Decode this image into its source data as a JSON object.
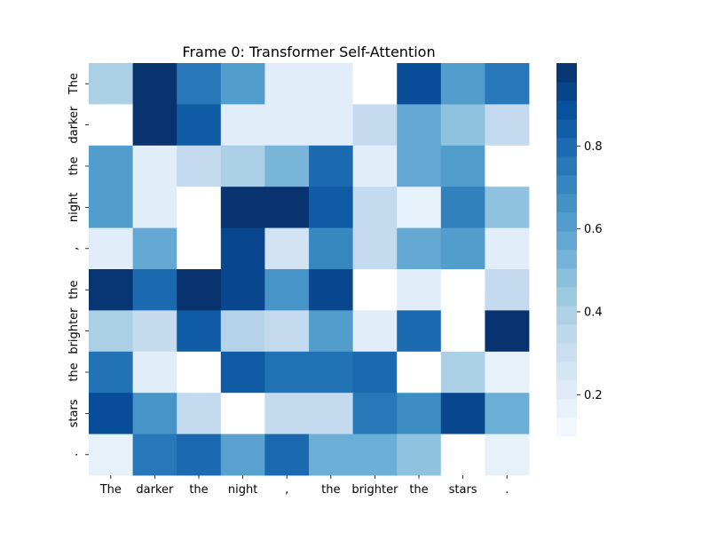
{
  "chart_data": {
    "type": "heatmap",
    "title": "Frame 0: Transformer Self-Attention",
    "x_tick_labels": [
      "The",
      "darker",
      "the",
      "night",
      ",",
      "the",
      "brighter",
      "the",
      "stars",
      "."
    ],
    "y_tick_labels": [
      "The",
      "darker",
      "the",
      "night",
      ",",
      "the",
      "brighter",
      "the",
      "stars",
      "."
    ],
    "values": [
      [
        0.4,
        0.99,
        0.75,
        0.62,
        0.2,
        0.2,
        0.05,
        0.9,
        0.62,
        0.75
      ],
      [
        0.05,
        0.99,
        0.85,
        0.2,
        0.2,
        0.2,
        0.33,
        0.57,
        0.47,
        0.33
      ],
      [
        0.62,
        0.2,
        0.33,
        0.4,
        0.52,
        0.8,
        0.2,
        0.57,
        0.62,
        0.05
      ],
      [
        0.62,
        0.2,
        0.05,
        0.99,
        0.99,
        0.85,
        0.33,
        0.17,
        0.72,
        0.47
      ],
      [
        0.2,
        0.57,
        0.05,
        0.92,
        0.27,
        0.7,
        0.33,
        0.57,
        0.62,
        0.2
      ],
      [
        0.98,
        0.8,
        0.99,
        0.92,
        0.65,
        0.92,
        0.05,
        0.2,
        0.05,
        0.33
      ],
      [
        0.4,
        0.33,
        0.85,
        0.37,
        0.33,
        0.62,
        0.2,
        0.8,
        0.05,
        0.99
      ],
      [
        0.77,
        0.2,
        0.05,
        0.85,
        0.77,
        0.77,
        0.8,
        0.05,
        0.4,
        0.17
      ],
      [
        0.9,
        0.65,
        0.33,
        0.05,
        0.33,
        0.33,
        0.75,
        0.68,
        0.92,
        0.55
      ],
      [
        0.17,
        0.75,
        0.8,
        0.6,
        0.8,
        0.55,
        0.55,
        0.47,
        0.05,
        0.17
      ]
    ],
    "colormap": "Blues",
    "vmin": 0.1,
    "vmax": 1.0,
    "colorbar_ticks": [
      0.2,
      0.4,
      0.6,
      0.8
    ],
    "colorbar_tick_labels": [
      "0.2",
      "0.4",
      "0.6",
      "0.8"
    ],
    "colorbar_levels": 20
  }
}
